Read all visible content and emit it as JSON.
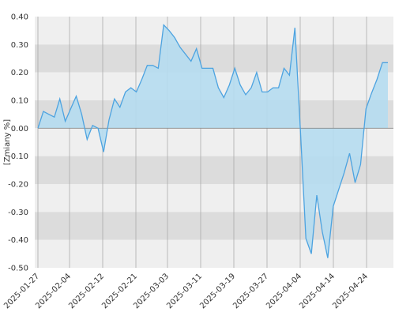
{
  "chart_data": {
    "type": "area",
    "ylabel": "[Zmiany %]",
    "ylim": [
      -0.5,
      0.4
    ],
    "yticks": [
      "0.40",
      "0.30",
      "0.20",
      "0.10",
      "0.00",
      "-0.10",
      "-0.20",
      "-0.30",
      "-0.40",
      "-0.50"
    ],
    "xticks": [
      "2025-01-27",
      "2025-02-04",
      "2025-02-12",
      "2025-02-21",
      "2025-03-03",
      "2025-03-11",
      "2025-03-19",
      "2025-03-27",
      "2025-04-04",
      "2025-04-14",
      "2025-04-24"
    ],
    "grid": true,
    "colors": {
      "line": "#4da3e0",
      "fill": "#b5dcef",
      "band_light": "#efefef",
      "band_dark": "#dcdcdc",
      "gridline": "#aaaaaa",
      "zero_line": "#888888"
    },
    "series": [
      {
        "values": [
          0.0,
          0.06,
          0.05,
          0.04,
          0.105,
          0.025,
          0.07,
          0.115,
          0.05,
          -0.04,
          0.01,
          0.0,
          -0.085,
          0.03,
          0.105,
          0.075,
          0.13,
          0.145,
          0.13,
          0.175,
          0.225,
          0.225,
          0.215,
          0.37,
          0.35,
          0.325,
          0.29,
          0.265,
          0.24,
          0.285,
          0.215,
          0.215,
          0.215,
          0.145,
          0.11,
          0.155,
          0.215,
          0.155,
          0.12,
          0.145,
          0.2,
          0.13,
          0.13,
          0.145,
          0.145,
          0.215,
          0.19,
          0.36,
          -0.01,
          -0.395,
          -0.45,
          -0.24,
          -0.37,
          -0.465,
          -0.28,
          -0.22,
          -0.16,
          -0.09,
          -0.195,
          -0.13,
          0.07,
          0.125,
          0.175,
          0.235,
          0.235
        ]
      }
    ]
  }
}
